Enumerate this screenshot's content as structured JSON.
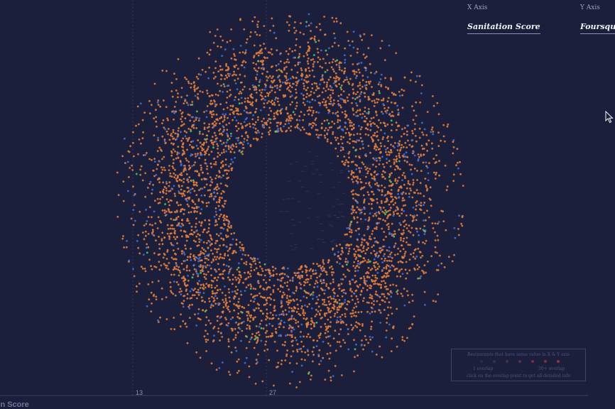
{
  "controls": {
    "x_axis_caption": "X Axis",
    "x_axis_value": "Sanitation Score",
    "y_axis_caption": "Y Axis",
    "y_axis_value": "Foursquare"
  },
  "colors": {
    "background": "#1b1f3b",
    "orange": "#e27d3c",
    "blue": "#3e6fd8",
    "green": "#3fd36a",
    "label": "#5a4a8a"
  },
  "legend": {
    "title": "Restaurants that have same value in X & Y axis",
    "low_label": "1 overlap",
    "high_label": "30+ overlap",
    "hint": "click on the overlap point to get all detailed info"
  },
  "chart_data": {
    "type": "scatter",
    "x_axis_label": "Sanitation Score",
    "x_ticks": [
      "13",
      "27"
    ],
    "series": [
      {
        "name": "orange",
        "color": "#e27d3c",
        "count": 3800
      },
      {
        "name": "blue",
        "color": "#3e6fd8",
        "count": 550
      },
      {
        "name": "green",
        "color": "#3fd36a",
        "count": 70
      }
    ],
    "grid": false
  }
}
